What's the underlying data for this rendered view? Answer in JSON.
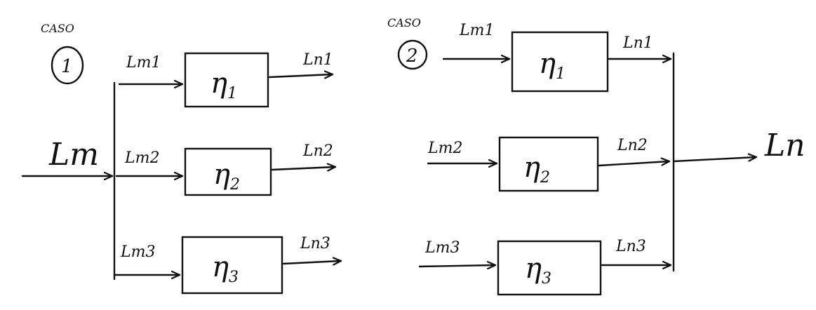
{
  "case1": {
    "caption": "CASO",
    "number": "1",
    "input_label": "Lm",
    "branches": [
      {
        "in_label": "Lm1",
        "out_label": "Ln1",
        "eta": "η",
        "eta_sub": "1"
      },
      {
        "in_label": "Lm2",
        "out_label": "Ln2",
        "eta": "η",
        "eta_sub": "2"
      },
      {
        "in_label": "Lm3",
        "out_label": "Ln3",
        "eta": "η",
        "eta_sub": "3"
      }
    ]
  },
  "case2": {
    "caption": "CASO",
    "number": "2",
    "output_label": "Ln",
    "branches": [
      {
        "in_label": "Lm1",
        "out_label": "Ln1",
        "eta": "η",
        "eta_sub": "1"
      },
      {
        "in_label": "Lm2",
        "out_label": "Ln2",
        "eta": "η",
        "eta_sub": "2"
      },
      {
        "in_label": "Lm3",
        "out_label": "Ln3",
        "eta": "η",
        "eta_sub": "3"
      }
    ]
  }
}
